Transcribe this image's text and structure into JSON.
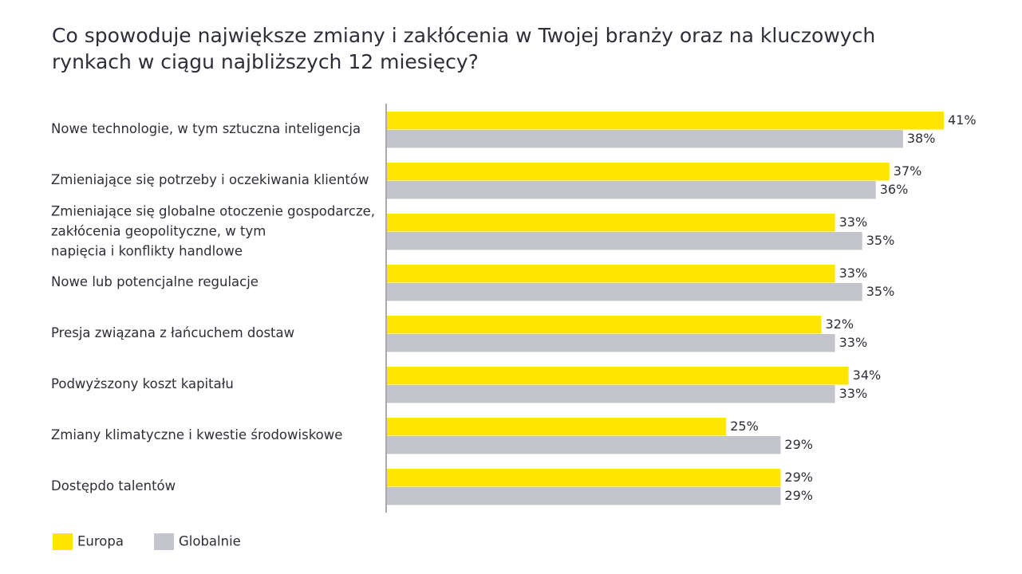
{
  "chart_data": {
    "type": "hbar",
    "title": "Co spowoduje największe zmiany i zakłócenia w Twojej branży oraz na kluczowych rynkach w ciągu najbliższych 12 miesięcy?",
    "categories": [
      "Nowe technologie, w tym sztuczna inteligencja",
      "Zmieniające się potrzeby i oczekiwania klientów",
      [
        "Zmieniające się globalne otoczenie gospodarcze,",
        "zakłócenia geopolityczne, w tym",
        "napięcia i konflikty handlowe"
      ],
      "Nowe lub potencjalne regulacje",
      "Presja związana z łańcuchem dostaw",
      "Podwyższony koszt kapitału",
      "Zmiany klimatyczne i kwestie środowiskowe",
      "Dostępdo talentów"
    ],
    "series": [
      {
        "name": "Europa",
        "color": "#ffe600",
        "values": [
          41,
          37,
          33,
          33,
          32,
          34,
          25,
          29
        ],
        "value_labels": [
          "41%",
          "37%",
          "33%",
          "33%",
          "32%",
          "34%",
          "25%",
          "29%"
        ]
      },
      {
        "name": "Globalnie",
        "color": "#c4c4cd",
        "values": [
          38,
          36,
          35,
          35,
          33,
          33,
          29,
          29
        ],
        "value_labels": [
          "38%",
          "36%",
          "35%",
          "35%",
          "33%",
          "33%",
          "29%",
          "29%"
        ]
      }
    ],
    "legend": "bottom-left"
  }
}
